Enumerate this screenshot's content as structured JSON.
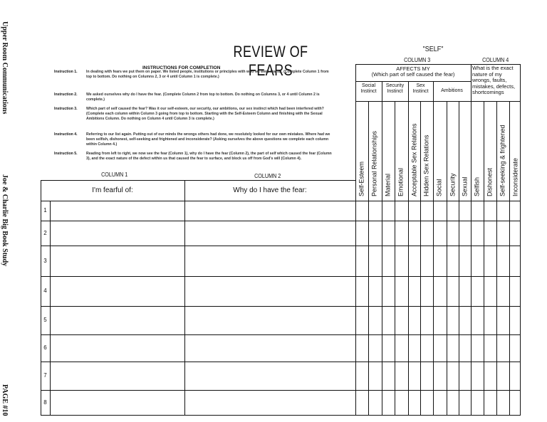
{
  "margin": {
    "publisher": "Upper Room Communications",
    "series": "Joe & Charlie Big Book Study",
    "page": "PAGE #10"
  },
  "title": "REVIEW OF FEARS",
  "instructions": {
    "heading": "INSTRUCTIONS FOR COMPLETION",
    "items": [
      {
        "label": "Instruction 1.",
        "text": "In dealing with fears we put them on paper. We listed people, institutions or principles with who we were fearful. (Complete Column 1 from top to bottom. Do nothing on Columns 2, 3 or 4 until Column 1 is complete.)"
      },
      {
        "label": "Instruction 2.",
        "text": "We asked ourselves why do I have the fear. (Complete Column 2 from top to bottom. Do nothing on Columns 3, or 4 until Column 2 is complete.)"
      },
      {
        "label": "Instruction 3.",
        "text": "Which part of self caused the fear? Was it our self-esteem, our security, our ambitions, our sex instinct which had been interfered with? (Complete each column within Column 3 going from top to bottom. Starting with the Self-Esteem Column and finishing with the Sexual Ambitions Column. Do nothing on Column 4 until Column 3 is complete.)"
      },
      {
        "label": "Instruction 4.",
        "text": "Referring to our list again. Putting out of our minds the wrongs others had done, we resolutely looked for our own mistakes. Where had we been selfish, dishonest, self-seeking and frightened and inconsiderate? (Asking ourselves the above questions we complete each column within Column 4.)"
      },
      {
        "label": "Instruction 5.",
        "text": "Reading from left to right, we now see the fear (Column 1), why do I have the fear (Column 2), the part of self which caused the fear (Column 3), and the exact nature of the defect within us that caused the fear to surface, and block us off from God's will (Column 4)."
      }
    ]
  },
  "columns": {
    "c1": "COLUMN 1",
    "c2": "COLUMN 2",
    "c3": "COLUMN 3",
    "c4": "COLUMN 4",
    "self": "\"SELF\""
  },
  "table": {
    "c1_header": "I'm fearful of:",
    "c2_header": "Why do I have the fear:",
    "affects_line1": "AFFECTS MY",
    "affects_line2": "(Which part of self caused the fear)",
    "groups": [
      "Social Instinct",
      "Security Instinct",
      "Sex Instinct",
      "Ambitions"
    ],
    "c4_header": "What is the exact nature of my wrongs, faults, mistakes, defects, shortcomings",
    "sub_columns": [
      "Self-Esteem",
      "Personal Relationships",
      "Material",
      "Emotional",
      "Acceptable Sex Relations",
      "Hidden Sex Relations",
      "Social",
      "Security",
      "Sexual",
      "Selfish",
      "Dishonest",
      "Self-seeking & frightened",
      "Inconsiderate"
    ],
    "rows": [
      "1",
      "2",
      "3",
      "4",
      "5",
      "6",
      "7",
      "8"
    ]
  }
}
